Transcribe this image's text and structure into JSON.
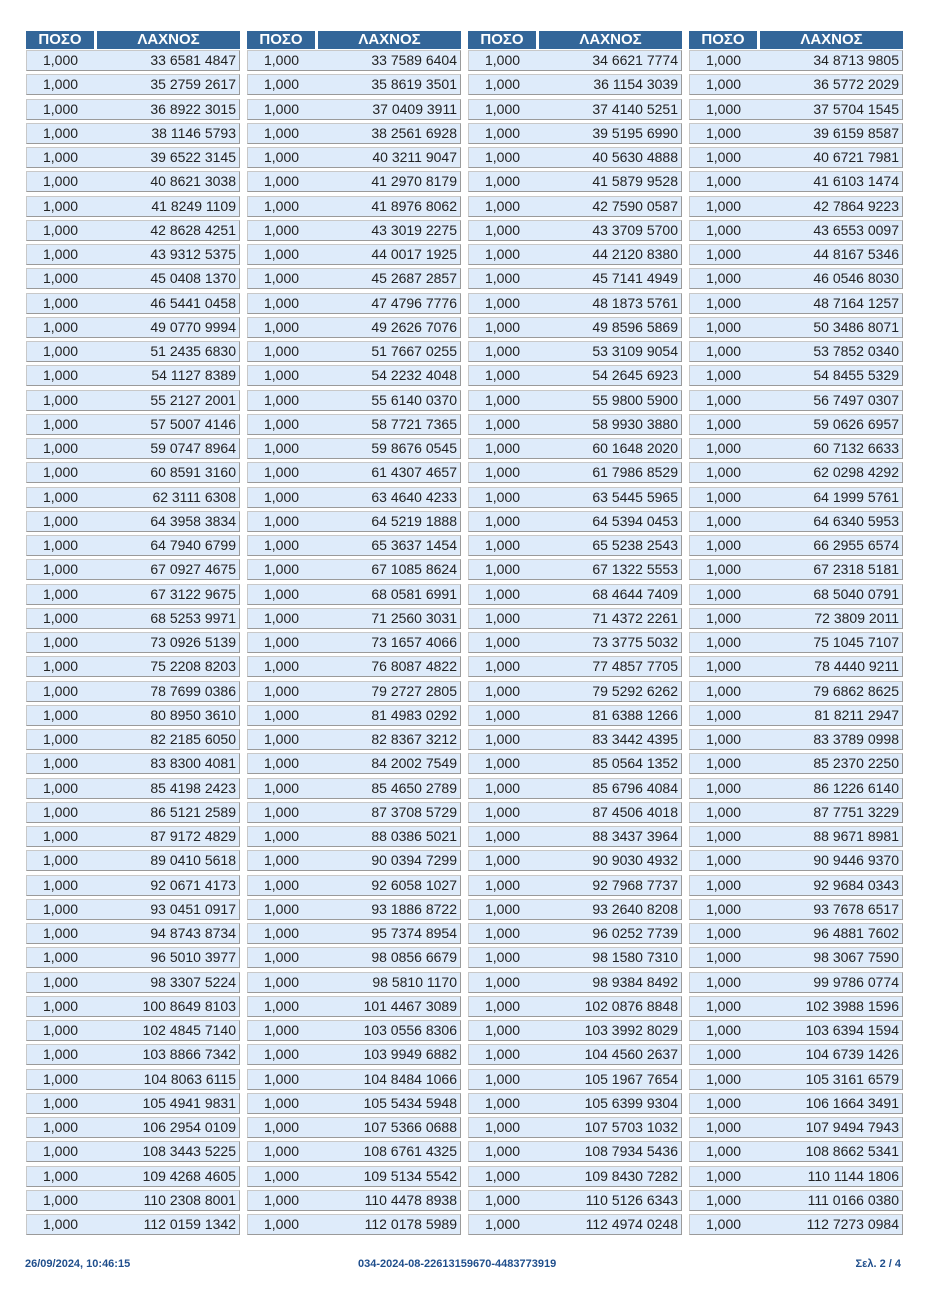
{
  "header": {
    "amount_label": "ΠΟΣΟ",
    "ticket_label": "ΛΑΧΝΟΣ"
  },
  "amount": "1,000",
  "rows": [
    [
      "33 6581 4847",
      "33 7589 6404",
      "34 6621 7774",
      "34 8713 9805"
    ],
    [
      "35 2759 2617",
      "35 8619 3501",
      "36 1154 3039",
      "36 5772 2029"
    ],
    [
      "36 8922 3015",
      "37 0409 3911",
      "37 4140 5251",
      "37 5704 1545"
    ],
    [
      "38 1146 5793",
      "38 2561 6928",
      "39 5195 6990",
      "39 6159 8587"
    ],
    [
      "39 6522 3145",
      "40 3211 9047",
      "40 5630 4888",
      "40 6721 7981"
    ],
    [
      "40 8621 3038",
      "41 2970 8179",
      "41 5879 9528",
      "41 6103 1474"
    ],
    [
      "41 8249 1109",
      "41 8976 8062",
      "42 7590 0587",
      "42 7864 9223"
    ],
    [
      "42 8628 4251",
      "43 3019 2275",
      "43 3709 5700",
      "43 6553 0097"
    ],
    [
      "43 9312 5375",
      "44 0017 1925",
      "44 2120 8380",
      "44 8167 5346"
    ],
    [
      "45 0408 1370",
      "45 2687 2857",
      "45 7141 4949",
      "46 0546 8030"
    ],
    [
      "46 5441 0458",
      "47 4796 7776",
      "48 1873 5761",
      "48 7164 1257"
    ],
    [
      "49 0770 9994",
      "49 2626 7076",
      "49 8596 5869",
      "50 3486 8071"
    ],
    [
      "51 2435 6830",
      "51 7667 0255",
      "53 3109 9054",
      "53 7852 0340"
    ],
    [
      "54 1127 8389",
      "54 2232 4048",
      "54 2645 6923",
      "54 8455 5329"
    ],
    [
      "55 2127 2001",
      "55 6140 0370",
      "55 9800 5900",
      "56 7497 0307"
    ],
    [
      "57 5007 4146",
      "58 7721 7365",
      "58 9930 3880",
      "59 0626 6957"
    ],
    [
      "59 0747 8964",
      "59 8676 0545",
      "60 1648 2020",
      "60 7132 6633"
    ],
    [
      "60 8591 3160",
      "61 4307 4657",
      "61 7986 8529",
      "62 0298 4292"
    ],
    [
      "62 3111 6308",
      "63 4640 4233",
      "63 5445 5965",
      "64 1999 5761"
    ],
    [
      "64 3958 3834",
      "64 5219 1888",
      "64 5394 0453",
      "64 6340 5953"
    ],
    [
      "64 7940 6799",
      "65 3637 1454",
      "65 5238 2543",
      "66 2955 6574"
    ],
    [
      "67 0927 4675",
      "67 1085 8624",
      "67 1322 5553",
      "67 2318 5181"
    ],
    [
      "67 3122 9675",
      "68 0581 6991",
      "68 4644 7409",
      "68 5040 0791"
    ],
    [
      "68 5253 9971",
      "71 2560 3031",
      "71 4372 2261",
      "72 3809 2011"
    ],
    [
      "73 0926 5139",
      "73 1657 4066",
      "73 3775 5032",
      "75 1045 7107"
    ],
    [
      "75 2208 8203",
      "76 8087 4822",
      "77 4857 7705",
      "78 4440 9211"
    ],
    [
      "78 7699 0386",
      "79 2727 2805",
      "79 5292 6262",
      "79 6862 8625"
    ],
    [
      "80 8950 3610",
      "81 4983 0292",
      "81 6388 1266",
      "81 8211 2947"
    ],
    [
      "82 2185 6050",
      "82 8367 3212",
      "83 3442 4395",
      "83 3789 0998"
    ],
    [
      "83 8300 4081",
      "84 2002 7549",
      "85 0564 1352",
      "85 2370 2250"
    ],
    [
      "85 4198 2423",
      "85 4650 2789",
      "85 6796 4084",
      "86 1226 6140"
    ],
    [
      "86 5121 2589",
      "87 3708 5729",
      "87 4506 4018",
      "87 7751 3229"
    ],
    [
      "87 9172 4829",
      "88 0386 5021",
      "88 3437 3964",
      "88 9671 8981"
    ],
    [
      "89 0410 5618",
      "90 0394 7299",
      "90 9030 4932",
      "90 9446 9370"
    ],
    [
      "92 0671 4173",
      "92 6058 1027",
      "92 7968 7737",
      "92 9684 0343"
    ],
    [
      "93 0451 0917",
      "93 1886 8722",
      "93 2640 8208",
      "93 7678 6517"
    ],
    [
      "94 8743 8734",
      "95 7374 8954",
      "96 0252 7739",
      "96 4881 7602"
    ],
    [
      "96 5010 3977",
      "98 0856 6679",
      "98 1580 7310",
      "98 3067 7590"
    ],
    [
      "98 3307 5224",
      "98 5810 1170",
      "98 9384 8492",
      "99 9786 0774"
    ],
    [
      "100 8649 8103",
      "101 4467 3089",
      "102 0876 8848",
      "102 3988 1596"
    ],
    [
      "102 4845 7140",
      "103 0556 8306",
      "103 3992 8029",
      "103 6394 1594"
    ],
    [
      "103 8866 7342",
      "103 9949 6882",
      "104 4560 2637",
      "104 6739 1426"
    ],
    [
      "104 8063 6115",
      "104 8484 1066",
      "105 1967 7654",
      "105 3161 6579"
    ],
    [
      "105 4941 9831",
      "105 5434 5948",
      "105 6399 9304",
      "106 1664 3491"
    ],
    [
      "106 2954 0109",
      "107 5366 0688",
      "107 5703 1032",
      "107 9494 7943"
    ],
    [
      "108 3443 5225",
      "108 6761 4325",
      "108 7934 5436",
      "108 8662 5341"
    ],
    [
      "109 4268 4605",
      "109 5134 5542",
      "109 8430 7282",
      "110 1144 1806"
    ],
    [
      "110 2308 8001",
      "110 4478 8938",
      "110 5126 6343",
      "111 0166 0380"
    ],
    [
      "112 0159 1342",
      "112 0178 5989",
      "112 4974 0248",
      "112 7273 0984"
    ]
  ],
  "footer": {
    "timestamp": "26/09/2024, 10:46:15",
    "document_id": "034-2024-08-22613159670-4483773919",
    "page": "Σελ. 2 / 4"
  },
  "colors": {
    "header_bg": "#336699",
    "row_bg": "#deebfa",
    "footer_text": "#1f4e8c"
  }
}
